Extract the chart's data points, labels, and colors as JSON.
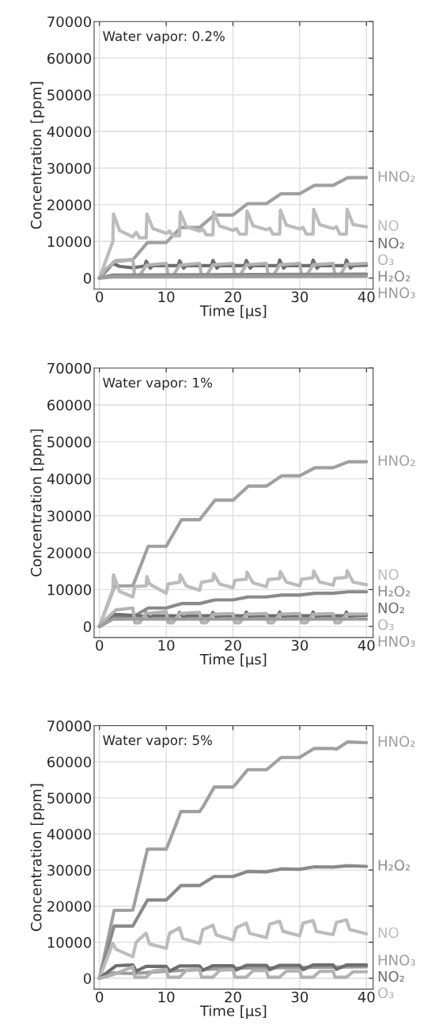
{
  "chart_data": [
    {
      "type": "line",
      "annotations": [
        "Water vapor: 0.2%"
      ],
      "xlabel": "Time [μs]",
      "ylabel": "Concentration [ppm]",
      "xlim": [
        -0.8,
        41
      ],
      "ylim": [
        -3000,
        70000
      ],
      "xticks": [
        0,
        10,
        20,
        30,
        40
      ],
      "yticks": [
        0,
        10000,
        20000,
        30000,
        40000,
        50000,
        60000,
        70000
      ],
      "grid": true,
      "legend": false,
      "marker": "none",
      "line_style": "solid",
      "series": [
        {
          "name": "HNO₂",
          "color": "#a0a0a0",
          "x": [
            0,
            2.2,
            5,
            7.2,
            10,
            12.2,
            15,
            17.2,
            20,
            22.2,
            25,
            27.2,
            30,
            32.2,
            35,
            37.2,
            40
          ],
          "values": [
            0,
            4500,
            5000,
            9700,
            9700,
            13800,
            13800,
            17200,
            17200,
            20300,
            20300,
            23000,
            23000,
            25300,
            25300,
            27400,
            27400
          ]
        },
        {
          "name": "NO",
          "color": "#bcbcbc",
          "x": [
            0,
            2,
            2.1,
            3,
            5,
            5.5,
            6,
            7,
            7.1,
            8,
            10,
            10.5,
            11,
            12,
            12.1,
            13,
            15,
            15.5,
            16,
            17,
            17.1,
            18,
            20,
            20.5,
            21,
            22,
            22.1,
            23,
            25,
            25.5,
            26,
            27,
            27.1,
            28,
            30,
            30.5,
            31,
            32,
            32.1,
            33,
            35,
            35.5,
            36,
            37,
            37.1,
            38,
            40
          ],
          "values": [
            0,
            10000,
            17500,
            13000,
            11200,
            12500,
            11000,
            11000,
            17500,
            13500,
            12200,
            12800,
            11500,
            11500,
            18000,
            14000,
            12800,
            13300,
            11800,
            11800,
            18000,
            14200,
            13000,
            13500,
            12000,
            12000,
            18300,
            14300,
            13200,
            13600,
            12000,
            12000,
            18500,
            14500,
            13400,
            13800,
            12000,
            12000,
            18700,
            14600,
            13500,
            14000,
            12000,
            12000,
            18800,
            14600,
            14000
          ]
        },
        {
          "name": "NO₂",
          "color": "#6e6e6e",
          "x": [
            0,
            2,
            3,
            5,
            6.8,
            7,
            7.6,
            8,
            11.8,
            12,
            12.6,
            13,
            16.8,
            17,
            17.6,
            18,
            21.8,
            22,
            22.6,
            23,
            26.8,
            27,
            27.6,
            28,
            31.8,
            32,
            32.6,
            33,
            36.8,
            37,
            37.6,
            38,
            40
          ],
          "values": [
            0,
            4000,
            3200,
            2800,
            3300,
            4600,
            2700,
            3400,
            3400,
            4700,
            2700,
            3400,
            3400,
            4800,
            2700,
            3400,
            3400,
            4800,
            2700,
            3400,
            3400,
            4900,
            2700,
            3400,
            3400,
            4900,
            2700,
            3400,
            3400,
            4900,
            2700,
            3400,
            3500
          ]
        },
        {
          "name": "O₃",
          "color": "#b2b2b2",
          "x": [
            0,
            1,
            2.5,
            5,
            5.3,
            6,
            7,
            10,
            10.3,
            11,
            12,
            15,
            15.3,
            16,
            17,
            20,
            20.3,
            21,
            22,
            25,
            25.3,
            26,
            27,
            30,
            30.3,
            31,
            32,
            35,
            35.3,
            36,
            37,
            40
          ],
          "values": [
            0,
            2500,
            4800,
            5000,
            500,
            600,
            3500,
            4000,
            500,
            600,
            3500,
            4000,
            500,
            600,
            3600,
            4000,
            500,
            600,
            3600,
            4000,
            500,
            600,
            3600,
            4000,
            500,
            600,
            3600,
            4000,
            500,
            600,
            3700,
            4000
          ]
        },
        {
          "name": "H₂O₂",
          "color": "#8a8a8a",
          "x": [
            0,
            2,
            40
          ],
          "values": [
            0,
            800,
            1100
          ]
        },
        {
          "name": "HNO₃",
          "color": "#9c9c9c",
          "x": [
            0,
            2,
            40
          ],
          "values": [
            0,
            300,
            500
          ]
        }
      ]
    },
    {
      "type": "line",
      "annotations": [
        "Water vapor: 1%"
      ],
      "xlabel": "Time [μs]",
      "ylabel": "Concentration [ppm]",
      "xlim": [
        -0.8,
        41
      ],
      "ylim": [
        -3000,
        70000
      ],
      "xticks": [
        0,
        10,
        20,
        30,
        40
      ],
      "yticks": [
        0,
        10000,
        20000,
        30000,
        40000,
        50000,
        60000,
        70000
      ],
      "grid": true,
      "legend": false,
      "marker": "none",
      "line_style": "solid",
      "series": [
        {
          "name": "HNO₂",
          "color": "#a0a0a0",
          "x": [
            0,
            2.3,
            5,
            7.3,
            10,
            12.3,
            15,
            17.3,
            20,
            22.3,
            25,
            27.3,
            30,
            32.3,
            35,
            37.3,
            40
          ],
          "values": [
            0,
            11000,
            11000,
            21700,
            21700,
            28900,
            28900,
            34200,
            34200,
            38000,
            38000,
            40800,
            40800,
            43000,
            43000,
            44600,
            44600
          ]
        },
        {
          "name": "NO",
          "color": "#bcbcbc",
          "x": [
            0,
            2,
            2.1,
            3,
            5,
            5.3,
            7,
            7.1,
            7.5,
            10,
            10.3,
            12,
            12.1,
            13,
            15,
            15.3,
            17,
            17.1,
            18,
            20,
            20.3,
            22,
            22.1,
            23,
            25,
            25.3,
            27,
            27.1,
            28,
            30,
            30.3,
            32,
            32.1,
            33,
            35,
            35.3,
            37,
            37.1,
            38,
            40
          ],
          "values": [
            0,
            10000,
            14000,
            9500,
            8000,
            10800,
            11000,
            13500,
            11500,
            9000,
            11500,
            12000,
            14000,
            11000,
            9800,
            12000,
            12500,
            14300,
            11500,
            10500,
            12500,
            12800,
            14700,
            11800,
            10800,
            12700,
            13000,
            14900,
            12000,
            11000,
            12800,
            13200,
            15000,
            12000,
            11200,
            13000,
            13300,
            15100,
            12000,
            11300
          ]
        },
        {
          "name": "H₂O₂",
          "color": "#8a8a8a",
          "x": [
            0,
            2.3,
            5,
            7.3,
            10,
            12.3,
            15,
            17.3,
            20,
            22.3,
            25,
            27.3,
            30,
            32.3,
            35,
            37.3,
            40
          ],
          "values": [
            0,
            2500,
            2600,
            5000,
            5000,
            6200,
            6200,
            7200,
            7200,
            8000,
            8000,
            8500,
            8500,
            9000,
            9000,
            9400,
            9400
          ]
        },
        {
          "name": "NO₂",
          "color": "#6e6e6e",
          "x": [
            0,
            2,
            3,
            5,
            6.8,
            7,
            7.6,
            8,
            11.8,
            12,
            12.6,
            13,
            16.8,
            17,
            17.6,
            18,
            21.8,
            22,
            22.6,
            23,
            26.8,
            27,
            27.6,
            28,
            31.8,
            32,
            32.6,
            33,
            36.8,
            37,
            37.6,
            38,
            40
          ],
          "values": [
            0,
            3200,
            3200,
            3000,
            2800,
            3700,
            2300,
            2900,
            2900,
            3800,
            2300,
            2900,
            2900,
            3800,
            2300,
            2900,
            2900,
            3900,
            2300,
            2900,
            2900,
            3900,
            2300,
            2900,
            2900,
            3900,
            2300,
            2900,
            2900,
            3900,
            2300,
            2900,
            3000
          ]
        },
        {
          "name": "O₃",
          "color": "#b2b2b2",
          "x": [
            0,
            1,
            2.5,
            5,
            5.3,
            6,
            7,
            10,
            10.3,
            11,
            12,
            15,
            15.3,
            16,
            17,
            20,
            20.3,
            21,
            22,
            25,
            25.3,
            26,
            27,
            30,
            30.3,
            31,
            32,
            35,
            35.3,
            36,
            37,
            40
          ],
          "values": [
            0,
            2000,
            4500,
            5000,
            1000,
            1000,
            3500,
            4000,
            1000,
            1000,
            3500,
            3800,
            1000,
            1000,
            3300,
            3500,
            1000,
            1000,
            3300,
            3500,
            1000,
            1000,
            3300,
            3500,
            1000,
            1000,
            3300,
            3500,
            1000,
            1000,
            3300,
            3400
          ]
        },
        {
          "name": "HNO₃",
          "color": "#9c9c9c",
          "x": [
            0,
            2,
            40
          ],
          "values": [
            0,
            2000,
            2000
          ]
        }
      ]
    },
    {
      "type": "line",
      "annotations": [
        "Water vapor: 5%"
      ],
      "xlabel": "Time [μs]",
      "ylabel": "Concentration [ppm]",
      "xlim": [
        -0.8,
        41
      ],
      "ylim": [
        -3000,
        70000
      ],
      "xticks": [
        0,
        10,
        20,
        30,
        40
      ],
      "yticks": [
        0,
        10000,
        20000,
        30000,
        40000,
        50000,
        60000,
        70000
      ],
      "grid": true,
      "legend": false,
      "marker": "none",
      "line_style": "solid",
      "series": [
        {
          "name": "HNO₂",
          "color": "#a0a0a0",
          "x": [
            0,
            2.2,
            5,
            7.2,
            10,
            10.5,
            12.2,
            15,
            15.5,
            17.2,
            20,
            20.5,
            22.2,
            25,
            25.5,
            27.2,
            30,
            30.5,
            32.2,
            35,
            35.5,
            37.2,
            40
          ],
          "values": [
            0,
            18800,
            18900,
            35800,
            35800,
            38000,
            46200,
            46200,
            47500,
            53000,
            53000,
            54000,
            57800,
            57800,
            58500,
            61200,
            61200,
            61800,
            63700,
            63700,
            63500,
            65500,
            65300
          ]
        },
        {
          "name": "H₂O₂",
          "color": "#8a8a8a",
          "x": [
            0,
            2.2,
            5,
            7.2,
            10,
            12.2,
            15,
            17.2,
            20,
            22.2,
            25,
            27.2,
            30,
            32.2,
            35,
            37.2,
            40
          ],
          "values": [
            0,
            14500,
            14500,
            21700,
            21700,
            25700,
            25700,
            28200,
            28200,
            29600,
            29500,
            30300,
            30200,
            30900,
            30800,
            31200,
            31000
          ]
        },
        {
          "name": "NO",
          "color": "#bcbcbc",
          "x": [
            0,
            2,
            2.5,
            5,
            5.5,
            7,
            7.5,
            10,
            10.5,
            12,
            12.5,
            15,
            15.5,
            17,
            17.5,
            20,
            20.5,
            22,
            22.5,
            25,
            25.5,
            27,
            27.5,
            30,
            30.5,
            32,
            32.5,
            35,
            35.5,
            37,
            37.5,
            40
          ],
          "values": [
            0,
            9700,
            8000,
            6000,
            10000,
            12500,
            9500,
            8300,
            12500,
            14000,
            11000,
            9700,
            13500,
            14700,
            12000,
            10600,
            14000,
            15300,
            12500,
            11300,
            15000,
            15800,
            13000,
            11800,
            15300,
            16000,
            13000,
            12100,
            15500,
            16200,
            13500,
            12300
          ]
        },
        {
          "name": "HNO₃",
          "color": "#9c9c9c",
          "x": [
            0,
            2,
            5,
            10,
            20,
            40
          ],
          "values": [
            0,
            1500,
            1300,
            2000,
            2800,
            3200
          ]
        },
        {
          "name": "NO₂",
          "color": "#6e6e6e",
          "x": [
            0,
            2.5,
            5,
            5.5,
            7,
            10,
            10.5,
            12,
            15,
            15.5,
            17,
            20,
            20.5,
            22,
            25,
            25.5,
            27,
            30,
            30.5,
            32,
            35,
            35.5,
            37,
            40
          ],
          "values": [
            0,
            3500,
            3700,
            2000,
            3300,
            3300,
            2000,
            3400,
            3400,
            2200,
            3500,
            3500,
            2300,
            3600,
            3600,
            2400,
            3600,
            3600,
            2400,
            3700,
            3700,
            2500,
            3700,
            3700
          ]
        },
        {
          "name": "O₃",
          "color": "#b2b2b2",
          "x": [
            0,
            2,
            5,
            5.3,
            7,
            8,
            10,
            10.3,
            12,
            13,
            15,
            15.3,
            17,
            18,
            20,
            20.3,
            22,
            23,
            25,
            25.3,
            27,
            28,
            30,
            30.3,
            32,
            33,
            35,
            35.3,
            37,
            38,
            40
          ],
          "values": [
            0,
            1000,
            3200,
            300,
            300,
            2000,
            2500,
            300,
            300,
            2200,
            2500,
            300,
            300,
            2200,
            2400,
            300,
            300,
            2100,
            2200,
            300,
            300,
            2000,
            2100,
            300,
            300,
            1900,
            2000,
            300,
            300,
            1800,
            1800
          ]
        }
      ]
    }
  ]
}
